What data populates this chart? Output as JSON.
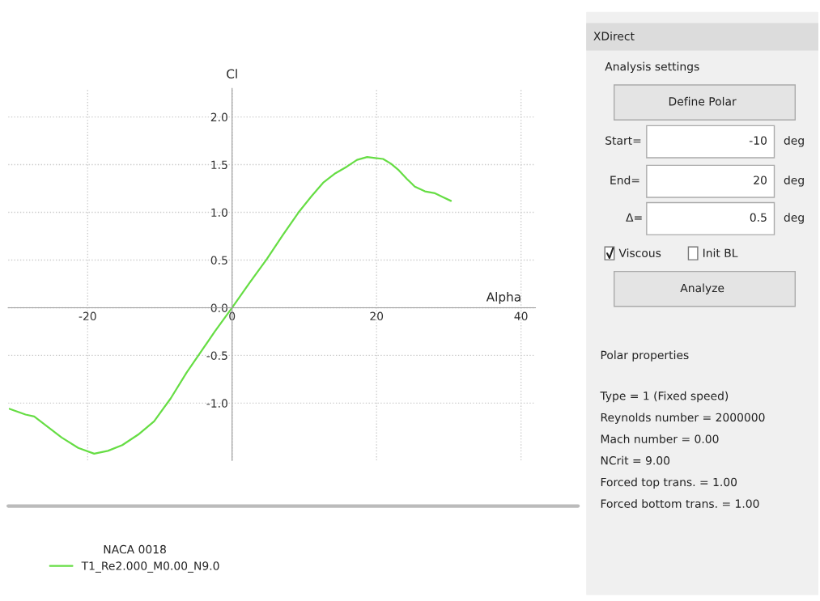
{
  "chart_data": [
    {
      "type": "line",
      "xlabel": "Alpha",
      "ylabel": "Cl",
      "legend_title": "NACA 0018",
      "legend": "bottom left",
      "grid": true,
      "line_style": "solid",
      "xlim": [
        -31,
        42
      ],
      "ylim": [
        -1.6,
        2.3
      ],
      "xticks": [
        -20,
        0,
        20,
        40
      ],
      "yticks": [
        {
          "value": -1.0,
          "label": "-1.0"
        },
        {
          "value": -0.5,
          "label": "-0.5"
        },
        {
          "value": 0.0,
          "label": "0.0"
        },
        {
          "value": 0.5,
          "label": "0.5"
        },
        {
          "value": 1.0,
          "label": "1.0"
        },
        {
          "value": 1.5,
          "label": "1.5"
        },
        {
          "value": 2.0,
          "label": "2.0"
        }
      ],
      "series": [
        {
          "name": "T1_Re2.000_M0.00_N9.0",
          "color": "#66dd44",
          "x": [
            -30.8,
            -28.6,
            -27.4,
            -25.5,
            -23.6,
            -21.3,
            -19.1,
            -17.2,
            -15.2,
            -13.0,
            -10.8,
            -8.5,
            -6.3,
            -4.3,
            -2.4,
            0,
            2.4,
            4.8,
            7.0,
            9.2,
            11.0,
            12.6,
            14.3,
            15.9,
            17.3,
            18.7,
            19.8,
            20.9,
            22.0,
            23.1,
            24.2,
            25.3,
            26.7,
            28.1,
            29.2,
            30.3
          ],
          "values": [
            -1.06,
            -1.12,
            -1.14,
            -1.25,
            -1.36,
            -1.47,
            -1.53,
            -1.5,
            -1.44,
            -1.33,
            -1.19,
            -0.95,
            -0.68,
            -0.46,
            -0.25,
            0.0,
            0.26,
            0.51,
            0.76,
            1.0,
            1.17,
            1.31,
            1.41,
            1.48,
            1.55,
            1.58,
            1.57,
            1.56,
            1.51,
            1.44,
            1.35,
            1.27,
            1.22,
            1.2,
            1.16,
            1.12
          ]
        }
      ]
    },
    {
      "type": "other",
      "annotations": [
        "XDirect",
        "Analysis settings",
        "Define Polar",
        "Start=",
        "-10",
        "deg",
        "End=",
        "20",
        "deg",
        "Δ=",
        "0.5",
        "deg",
        "Viscous",
        "Init BL",
        "Analyze",
        "Polar properties",
        "Type = 1 (Fixed speed)",
        "Reynolds number = 2000000",
        "Mach number = 0.00",
        "NCrit = 9.00",
        "Forced top trans. = 1.00",
        "Forced bottom trans. = 1.00"
      ]
    }
  ]
}
